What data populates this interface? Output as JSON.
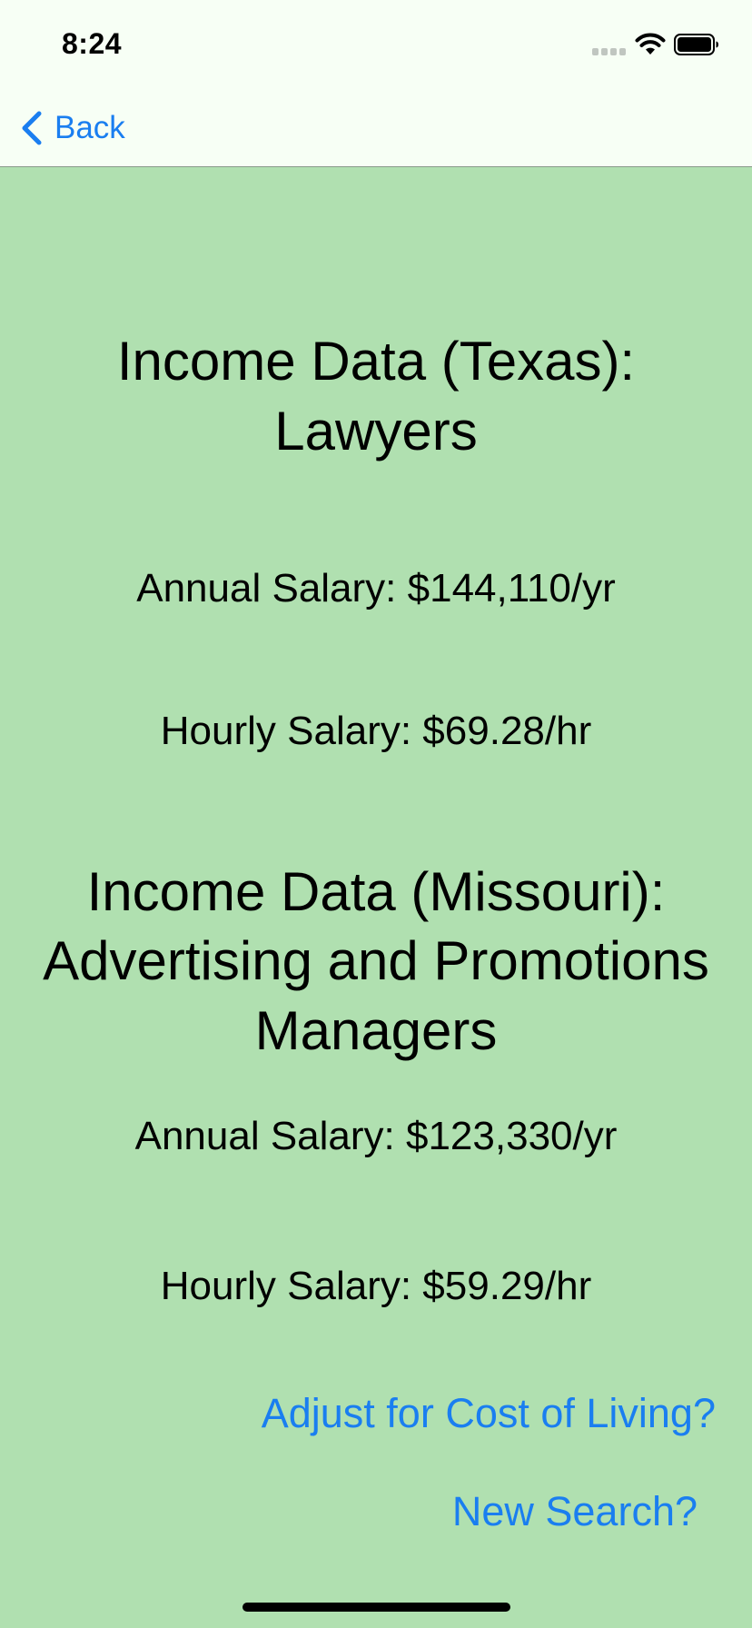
{
  "status_bar": {
    "time": "8:24"
  },
  "nav": {
    "back_label": "Back",
    "accent_color": "#1a7ef0"
  },
  "texas": {
    "heading": [
      "Income Data (Texas):",
      "Lawyers"
    ],
    "annual": "Annual Salary: $144,110/yr",
    "hourly": "Hourly Salary: $69.28/hr"
  },
  "missouri": {
    "heading": [
      "Income Data (Missouri):",
      "Advertising and Promotions",
      "Managers"
    ],
    "annual": "Annual Salary: $123,330/yr",
    "hourly": "Hourly Salary: $59.29/hr"
  },
  "actions": {
    "adjust_label": "Adjust for Cost of Living?",
    "new_search_label": "New Search?"
  },
  "icons": [
    "cellular-signal-icon",
    "wifi-icon",
    "battery-icon",
    "chevron-left-icon"
  ],
  "colors": {
    "background": "#b0e0b0",
    "bar_background": "#f7fff5",
    "link": "#1a7ef0"
  }
}
